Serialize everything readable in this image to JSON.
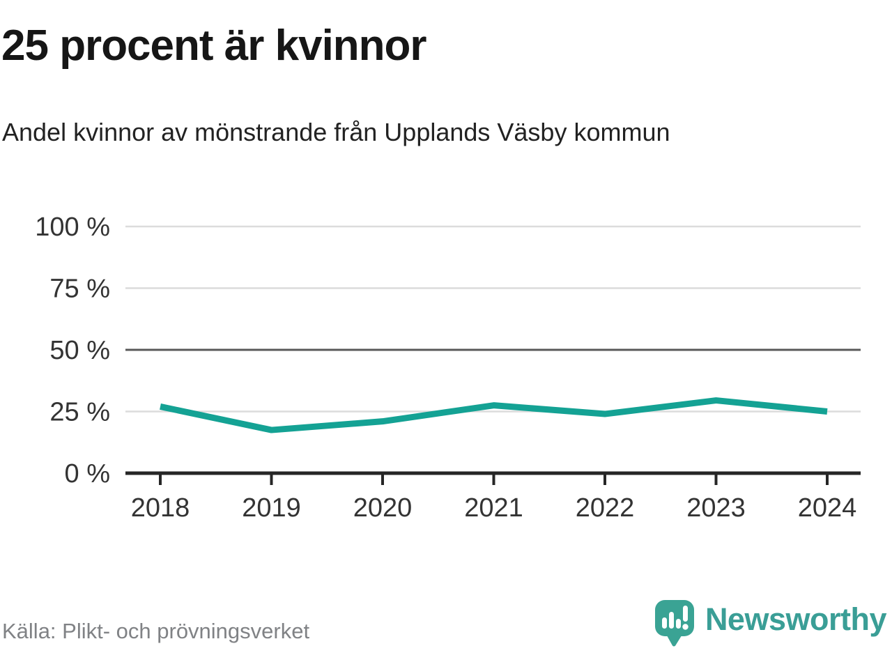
{
  "header": {
    "title": "25 procent är kvinnor",
    "subtitle": "Andel kvinnor av mönstrande från Upplands Väsby kommun"
  },
  "chart_data": {
    "type": "line",
    "title": "25 procent är kvinnor",
    "subtitle": "Andel kvinnor av mönstrande från Upplands Väsby kommun",
    "categories": [
      "2018",
      "2019",
      "2020",
      "2021",
      "2022",
      "2023",
      "2024"
    ],
    "series": [
      {
        "name": "Andel kvinnor av mönstrande",
        "values": [
          27,
          17.5,
          21,
          27.5,
          24,
          29.5,
          25
        ]
      }
    ],
    "xlabel": "",
    "ylabel": "",
    "ylim": [
      0,
      100
    ],
    "yticks": [
      0,
      25,
      50,
      75,
      100
    ],
    "ytick_labels": [
      "0 %",
      "25 %",
      "50 %",
      "75 %",
      "100 %"
    ],
    "grid": true,
    "emphasized_gridline": 50,
    "legend_position": "none",
    "line_color": "#14a294"
  },
  "footer": {
    "source": "Källa: Plikt- och prövningsverket",
    "brand": "Newsworthy"
  },
  "colors": {
    "line": "#14a294",
    "grid_light": "#dcdcdc",
    "grid_mid": "#595959",
    "axis": "#262626",
    "tick_text": "#333333",
    "title_text": "#161616",
    "subtitle_text": "#222222",
    "source_text": "#808285",
    "brand_teal": "#3a9e96",
    "logo_bubble": "#3aa394"
  }
}
